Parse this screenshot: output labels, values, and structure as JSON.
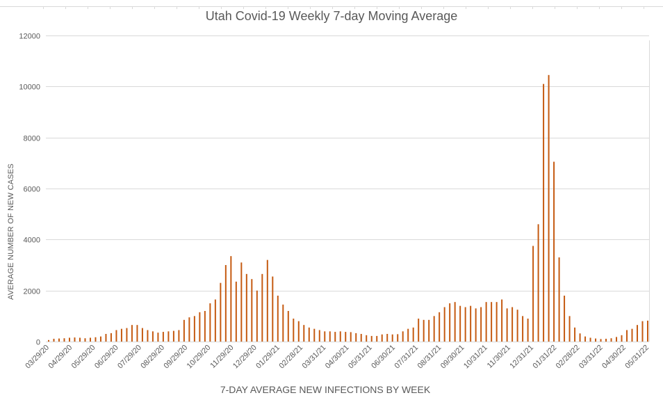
{
  "chart_data": {
    "type": "bar",
    "title": "Utah Covid-19 Weekly 7-day Moving Average",
    "xlabel": "7-DAY AVERAGE NEW INFECTIONS BY WEEK",
    "ylabel": "AVERAGE NUMBER OF NEW  CASES",
    "ylim": [
      0,
      12000
    ],
    "yticks": [
      0,
      2000,
      4000,
      6000,
      8000,
      10000,
      12000
    ],
    "grid": true,
    "colors": {
      "bar": "#c55a11",
      "grid": "#d9d9d9",
      "text": "#595959"
    },
    "tick_labels": [
      "03/29/20",
      "04/29/20",
      "05/29/20",
      "06/29/20",
      "07/29/20",
      "08/29/20",
      "09/29/20",
      "10/29/20",
      "11/29/20",
      "12/29/20",
      "01/29/21",
      "02/28/21",
      "03/31/21",
      "04/30/21",
      "05/31/21",
      "06/30/21",
      "07/31/21",
      "08/31/21",
      "09/30/21",
      "10/31/21",
      "11/30/21",
      "12/31/21",
      "01/31/22",
      "02/28/22",
      "03/31/22",
      "04/30/22",
      "05/31/22"
    ],
    "values": [
      60,
      110,
      120,
      130,
      150,
      160,
      150,
      130,
      150,
      170,
      200,
      300,
      330,
      450,
      500,
      530,
      650,
      650,
      530,
      450,
      400,
      350,
      380,
      400,
      420,
      450,
      850,
      950,
      1000,
      1150,
      1200,
      1500,
      1650,
      2300,
      3000,
      3350,
      2350,
      3100,
      2650,
      2450,
      2000,
      2650,
      3200,
      2550,
      1800,
      1450,
      1200,
      900,
      800,
      650,
      550,
      500,
      450,
      400,
      400,
      380,
      400,
      380,
      370,
      330,
      300,
      250,
      220,
      220,
      280,
      300,
      280,
      290,
      400,
      500,
      550,
      900,
      850,
      850,
      1000,
      1150,
      1350,
      1500,
      1550,
      1400,
      1350,
      1400,
      1300,
      1350,
      1550,
      1550,
      1550,
      1650,
      1300,
      1350,
      1250,
      1000,
      900,
      3750,
      4600,
      10100,
      10450,
      7050,
      3300,
      1800,
      1000,
      550,
      320,
      200,
      150,
      120,
      100,
      110,
      130,
      180,
      250,
      450,
      500,
      650,
      800,
      820
    ]
  }
}
